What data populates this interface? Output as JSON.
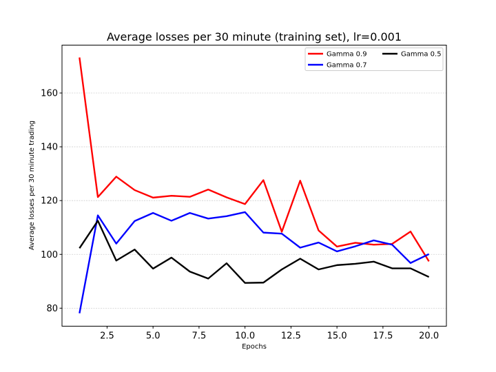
{
  "chart_data": {
    "type": "line",
    "title": "Average losses per 30 minute (training set), lr=0.001",
    "xlabel": "Epochs",
    "ylabel": "Average losses per 30 minute trading",
    "xlim": [
      0.05,
      20.95
    ],
    "ylim": [
      73.3,
      177.8
    ],
    "x": [
      1,
      2,
      3,
      4,
      5,
      6,
      7,
      8,
      9,
      10,
      11,
      12,
      13,
      14,
      15,
      16,
      17,
      18,
      19,
      20
    ],
    "x_ticks": [
      2.5,
      5.0,
      7.5,
      10.0,
      12.5,
      15.0,
      17.5,
      20.0
    ],
    "y_ticks": [
      80,
      100,
      120,
      140,
      160
    ],
    "grid": "horizontal",
    "legend_position": "top-right",
    "series": [
      {
        "name": "Gamma 0.9",
        "color": "#ff0000",
        "values": [
          173.2,
          121.3,
          128.9,
          123.9,
          121.1,
          121.8,
          121.4,
          124.1,
          121.2,
          118.7,
          127.6,
          108.4,
          127.4,
          108.9,
          102.9,
          104.3,
          103.6,
          103.9,
          108.5,
          97.4
        ]
      },
      {
        "name": "Gamma 0.7",
        "color": "#0000ff",
        "values": [
          78.1,
          114.5,
          104.0,
          112.4,
          115.4,
          112.5,
          115.4,
          113.3,
          114.2,
          115.7,
          108.1,
          107.7,
          102.5,
          104.4,
          101.1,
          103.0,
          105.2,
          103.6,
          96.8,
          100.1
        ]
      },
      {
        "name": "Gamma 0.5",
        "color": "#000000",
        "values": [
          102.3,
          112.5,
          97.7,
          101.8,
          94.7,
          98.8,
          93.6,
          91.0,
          96.7,
          89.4,
          89.5,
          94.4,
          98.4,
          94.4,
          96.0,
          96.5,
          97.3,
          94.8,
          94.8,
          91.6
        ]
      }
    ]
  }
}
